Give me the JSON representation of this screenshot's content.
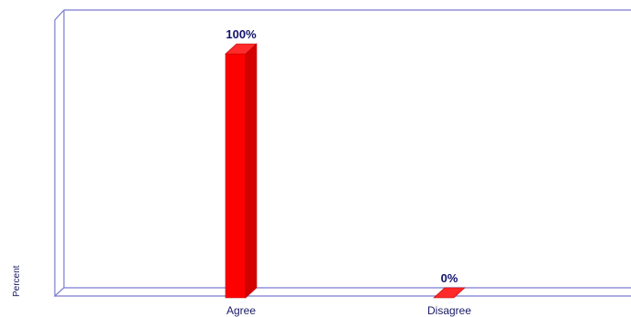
{
  "chart_data": {
    "type": "bar",
    "categories": [
      "Agree",
      "Disagree"
    ],
    "values": [
      100,
      0
    ],
    "value_labels": [
      "100%",
      "0%"
    ],
    "ylabel": "Percent",
    "ylim": [
      0,
      100
    ],
    "bar_color": "#ff0000",
    "frame_color": "#7b7bd0",
    "grid": false,
    "style": "3d"
  }
}
